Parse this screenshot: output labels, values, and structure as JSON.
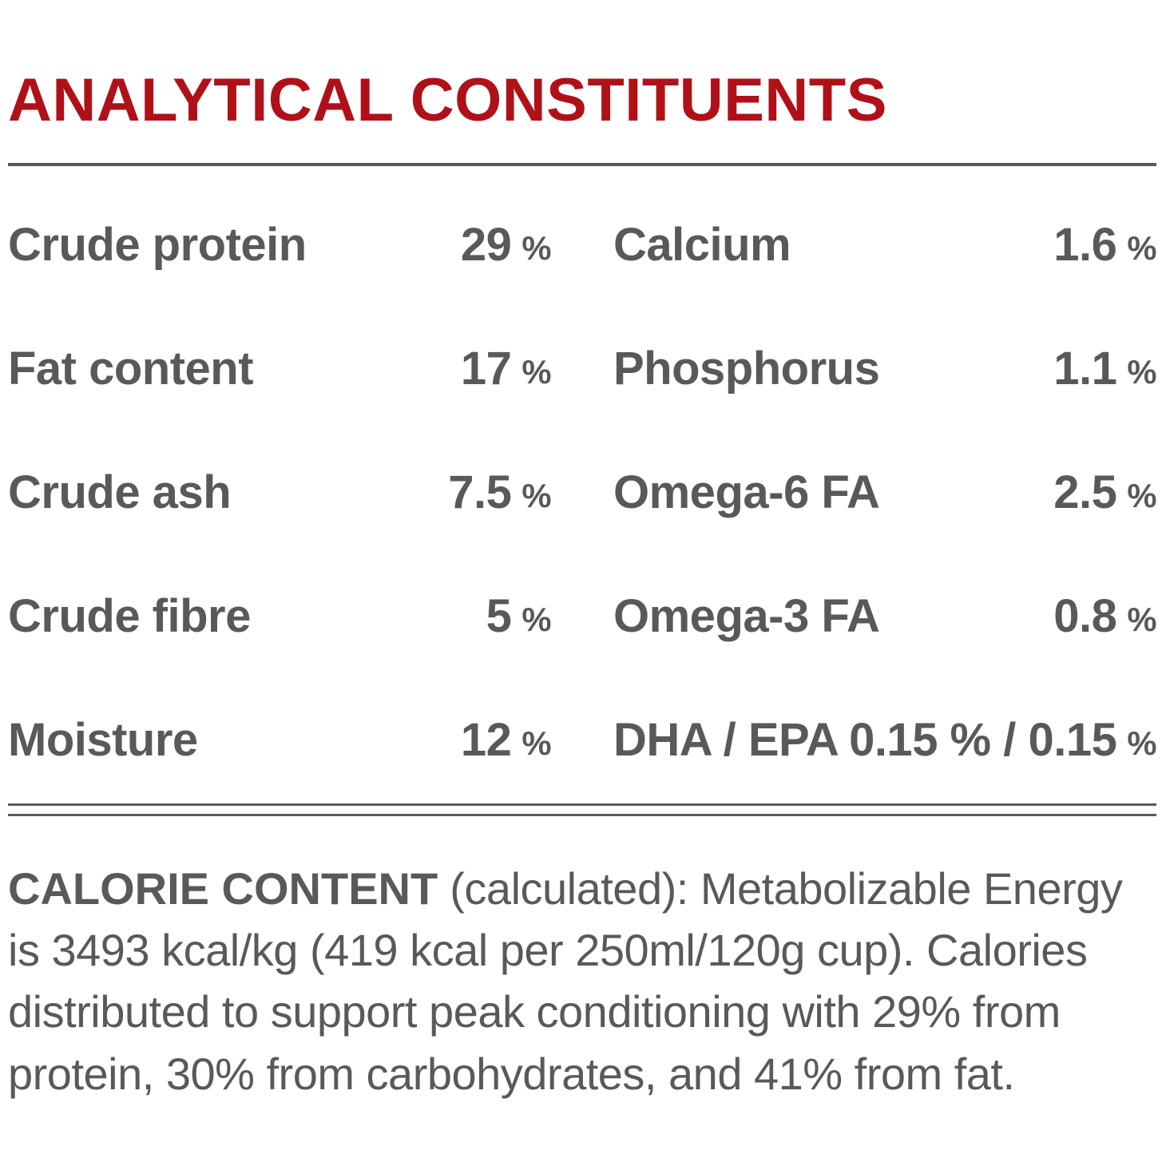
{
  "title": "ANALYTICAL CONSTITUENTS",
  "colors": {
    "accent_red": "#b01119",
    "text_gray": "#59595b",
    "background": "#ffffff"
  },
  "table": {
    "left": [
      {
        "label": "Crude protein",
        "value": "29",
        "unit": "%"
      },
      {
        "label": "Fat content",
        "value": "17",
        "unit": "%"
      },
      {
        "label": "Crude ash",
        "value": "7.5",
        "unit": "%"
      },
      {
        "label": "Crude fibre",
        "value": "5",
        "unit": "%"
      },
      {
        "label": "Moisture",
        "value": "12",
        "unit": "%"
      }
    ],
    "right": [
      {
        "label": "Calcium",
        "value": "1.6",
        "unit": "%"
      },
      {
        "label": "Phosphorus",
        "value": "1.1",
        "unit": "%"
      },
      {
        "label": "Omega-6 FA",
        "value": "2.5",
        "unit": "%"
      },
      {
        "label": "Omega-3 FA",
        "value": "0.8",
        "unit": "%"
      },
      {
        "label": "DHA / EPA",
        "value": "0.15 % / 0.15",
        "unit": "%"
      }
    ]
  },
  "calorie": {
    "heading": "CALORIE CONTENT",
    "rest": " (calculated): Metabolizable Energy is 3493 kcal/kg (419 kcal per 250ml/120g cup). Calories distributed to support peak conditioning with 29% from protein, 30% from carbohydrates, and 41% from fat."
  }
}
